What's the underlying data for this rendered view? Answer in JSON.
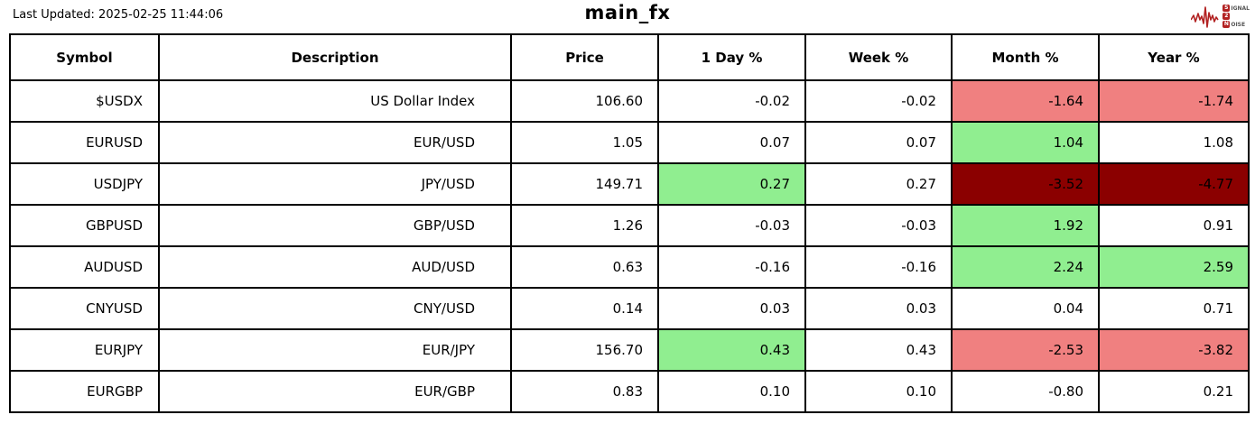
{
  "header": {
    "last_updated": "Last Updated: 2025-02-25 11:44:06",
    "logo": {
      "line1_badge": "S",
      "line1_rest": "IGNAL",
      "line2_badge": "2",
      "line3_badge": "N",
      "line3_rest": "OISE",
      "color": "#b22222"
    }
  },
  "chart_data": {
    "type": "table",
    "title": "main_fx",
    "columns": [
      "Symbol",
      "Description",
      "Price",
      "1 Day %",
      "Week %",
      "Month %",
      "Year %"
    ],
    "palette": {
      "salmon": "#F08080",
      "green": "#90EE90",
      "darkred": "#8B0000",
      "white": "#FFFFFF"
    },
    "rows": [
      {
        "cells": [
          "$USDX",
          "US Dollar Index",
          "106.60",
          "-0.02",
          "-0.02",
          "-1.64",
          "-1.74"
        ],
        "bg": [
          null,
          null,
          null,
          null,
          null,
          "salmon",
          "salmon"
        ]
      },
      {
        "cells": [
          "EURUSD",
          "EUR/USD",
          "1.05",
          "0.07",
          "0.07",
          "1.04",
          "1.08"
        ],
        "bg": [
          null,
          null,
          null,
          null,
          null,
          "green",
          null
        ]
      },
      {
        "cells": [
          "USDJPY",
          "JPY/USD",
          "149.71",
          "0.27",
          "0.27",
          "-3.52",
          "-4.77"
        ],
        "bg": [
          null,
          null,
          null,
          "green",
          null,
          "darkred",
          "darkred"
        ]
      },
      {
        "cells": [
          "GBPUSD",
          "GBP/USD",
          "1.26",
          "-0.03",
          "-0.03",
          "1.92",
          "0.91"
        ],
        "bg": [
          null,
          null,
          null,
          null,
          null,
          "green",
          null
        ]
      },
      {
        "cells": [
          "AUDUSD",
          "AUD/USD",
          "0.63",
          "-0.16",
          "-0.16",
          "2.24",
          "2.59"
        ],
        "bg": [
          null,
          null,
          null,
          null,
          null,
          "green",
          "green"
        ]
      },
      {
        "cells": [
          "CNYUSD",
          "CNY/USD",
          "0.14",
          "0.03",
          "0.03",
          "0.04",
          "0.71"
        ],
        "bg": [
          null,
          null,
          null,
          null,
          null,
          null,
          null
        ]
      },
      {
        "cells": [
          "EURJPY",
          "EUR/JPY",
          "156.70",
          "0.43",
          "0.43",
          "-2.53",
          "-3.82"
        ],
        "bg": [
          null,
          null,
          null,
          "green",
          null,
          "salmon",
          "salmon"
        ]
      },
      {
        "cells": [
          "EURGBP",
          "EUR/GBP",
          "0.83",
          "0.10",
          "0.10",
          "-0.80",
          "0.21"
        ],
        "bg": [
          null,
          null,
          null,
          null,
          null,
          null,
          null
        ]
      }
    ],
    "column_semantics": [
      "symbol",
      "description",
      "price",
      "day-pct",
      "week-pct",
      "month-pct",
      "year-pct"
    ]
  }
}
